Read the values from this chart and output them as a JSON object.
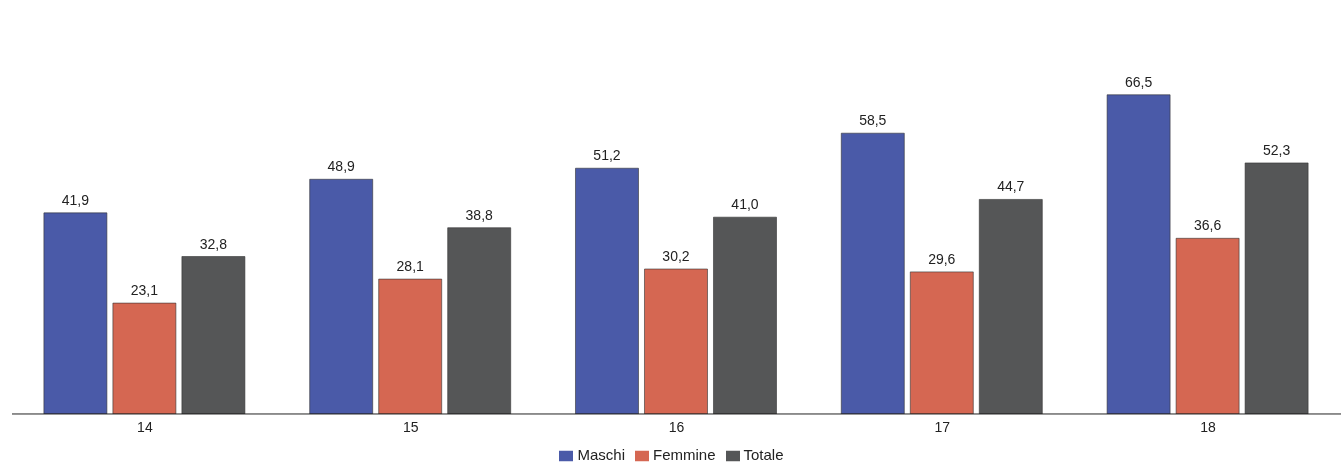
{
  "chart_data": {
    "type": "bar",
    "categories": [
      "14",
      "15",
      "16",
      "17",
      "18"
    ],
    "series": [
      {
        "name": "Maschi",
        "color": "#4a5aa8",
        "values": [
          41.9,
          48.9,
          51.2,
          58.5,
          66.5
        ],
        "value_labels": [
          "41,9",
          "48,9",
          "51,2",
          "58,5",
          "66,5"
        ]
      },
      {
        "name": "Femmine",
        "color": "#d56752",
        "values": [
          23.1,
          28.1,
          30.2,
          29.6,
          36.6
        ],
        "value_labels": [
          "23,1",
          "28,1",
          "30,2",
          "29,6",
          "36,6"
        ]
      },
      {
        "name": "Totale",
        "color": "#555657",
        "values": [
          32.8,
          38.8,
          41.0,
          44.7,
          52.3
        ],
        "value_labels": [
          "32,8",
          "38,8",
          "41,0",
          "44,7",
          "52,3"
        ]
      }
    ],
    "tick_labels": "x",
    "legend": "bottom"
  }
}
